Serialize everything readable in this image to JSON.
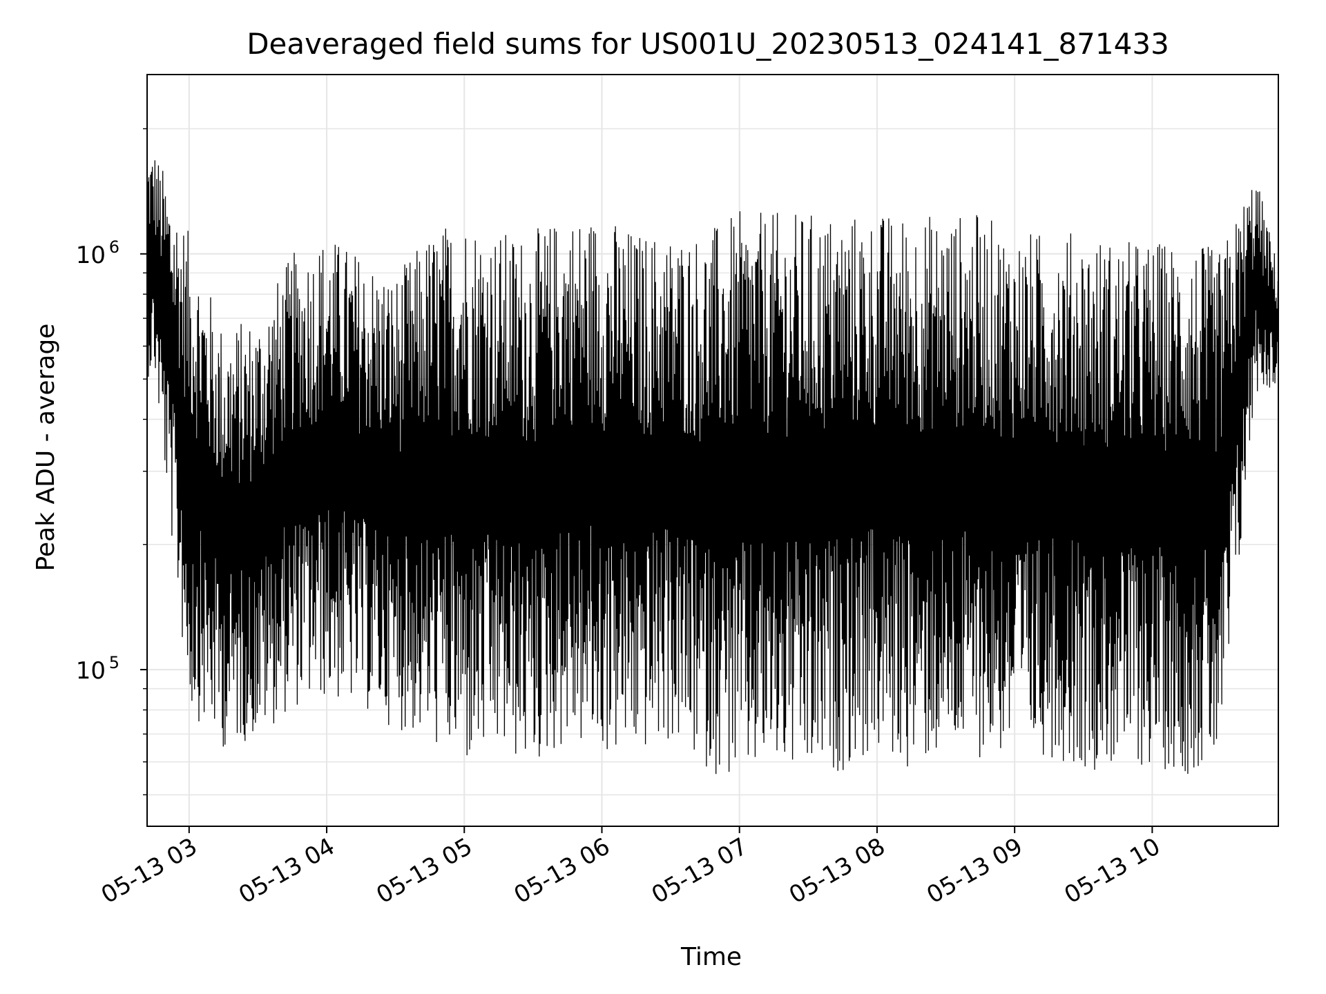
{
  "chart_data": {
    "type": "line",
    "title": "Deaveraged field sums for US001U_20230513_024141_871433",
    "xlabel": "Time",
    "ylabel": "Peak ADU - average",
    "x_axis": {
      "kind": "time",
      "start": "2023-05-13T02:41:41",
      "end": "2023-05-13T10:55:00",
      "tick_labels": [
        "05-13 03",
        "05-13 04",
        "05-13 05",
        "05-13 06",
        "05-13 07",
        "05-13 08",
        "05-13 09",
        "05-13 10"
      ]
    },
    "y_axis": {
      "scale": "log",
      "ylim": [
        42000,
        2700000
      ],
      "major_ticks": [
        100000,
        1000000
      ],
      "major_tick_labels": [
        {
          "base": "10",
          "exp": "5"
        },
        {
          "base": "10",
          "exp": "6"
        }
      ]
    },
    "grid": true,
    "series": [
      {
        "color": "#000000",
        "sampling": "every 15 minutes, showing the typical low and high value of the oscillating signal",
        "points": [
          {
            "x": "2023-05-13T02:45",
            "low": 550000,
            "high": 1700000
          },
          {
            "x": "2023-05-13T03:00",
            "low": 95000,
            "high": 1000000
          },
          {
            "x": "2023-05-13T03:15",
            "low": 75000,
            "high": 600000
          },
          {
            "x": "2023-05-13T03:30",
            "low": 80000,
            "high": 650000
          },
          {
            "x": "2023-05-13T03:45",
            "low": 95000,
            "high": 900000
          },
          {
            "x": "2023-05-13T04:00",
            "low": 100000,
            "high": 1000000
          },
          {
            "x": "2023-05-13T04:15",
            "low": 95000,
            "high": 900000
          },
          {
            "x": "2023-05-13T04:30",
            "low": 85000,
            "high": 800000
          },
          {
            "x": "2023-05-13T04:45",
            "low": 80000,
            "high": 1000000
          },
          {
            "x": "2023-05-13T05:00",
            "low": 70000,
            "high": 1100000
          },
          {
            "x": "2023-05-13T05:15",
            "low": 75000,
            "high": 1000000
          },
          {
            "x": "2023-05-13T05:30",
            "low": 70000,
            "high": 1000000
          },
          {
            "x": "2023-05-13T05:45",
            "low": 80000,
            "high": 1100000
          },
          {
            "x": "2023-05-13T06:00",
            "low": 75000,
            "high": 1100000
          },
          {
            "x": "2023-05-13T06:15",
            "low": 75000,
            "high": 1000000
          },
          {
            "x": "2023-05-13T06:30",
            "low": 80000,
            "high": 1000000
          },
          {
            "x": "2023-05-13T06:45",
            "low": 70000,
            "high": 1000000
          },
          {
            "x": "2023-05-13T07:00",
            "low": 65000,
            "high": 1100000
          },
          {
            "x": "2023-05-13T07:15",
            "low": 70000,
            "high": 1100000
          },
          {
            "x": "2023-05-13T07:30",
            "low": 65000,
            "high": 1100000
          },
          {
            "x": "2023-05-13T07:45",
            "low": 70000,
            "high": 1100000
          },
          {
            "x": "2023-05-13T08:00",
            "low": 75000,
            "high": 1100000
          },
          {
            "x": "2023-05-13T08:15",
            "low": 70000,
            "high": 1100000
          },
          {
            "x": "2023-05-13T08:30",
            "low": 75000,
            "high": 1100000
          },
          {
            "x": "2023-05-13T08:45",
            "low": 75000,
            "high": 1100000
          },
          {
            "x": "2023-05-13T09:00",
            "low": 75000,
            "high": 1000000
          },
          {
            "x": "2023-05-13T09:15",
            "low": 75000,
            "high": 1000000
          },
          {
            "x": "2023-05-13T09:30",
            "low": 70000,
            "high": 1000000
          },
          {
            "x": "2023-05-13T09:45",
            "low": 70000,
            "high": 950000
          },
          {
            "x": "2023-05-13T10:00",
            "low": 70000,
            "high": 950000
          },
          {
            "x": "2023-05-13T10:15",
            "low": 68000,
            "high": 950000
          },
          {
            "x": "2023-05-13T10:30",
            "low": 70000,
            "high": 900000
          },
          {
            "x": "2023-05-13T10:45",
            "low": 500000,
            "high": 1500000
          },
          {
            "x": "2023-05-13T10:55",
            "low": 500000,
            "high": 900000
          }
        ]
      }
    ]
  }
}
